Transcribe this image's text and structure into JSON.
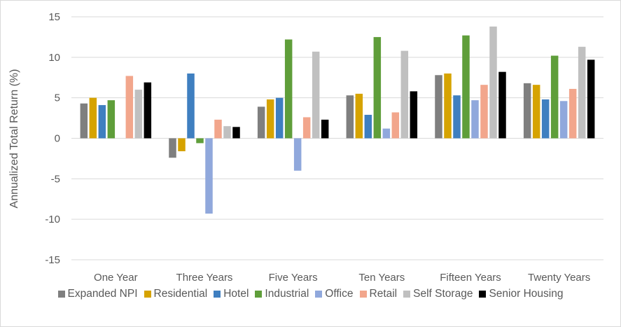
{
  "chart_data": {
    "type": "bar",
    "ylabel": "Annualized Total Return (%)",
    "xlabel": "",
    "ylim": [
      -15,
      15
    ],
    "yticks": [
      15,
      10,
      5,
      0,
      -5,
      -10,
      -15
    ],
    "grid": true,
    "legend_position": "bottom",
    "categories": [
      "One Year",
      "Three Years",
      "Five Years",
      "Ten Years",
      "Fifteen Years",
      "Twenty Years"
    ],
    "series": [
      {
        "name": "Expanded NPI",
        "color": "#7f7f7f",
        "values": [
          4.3,
          -2.4,
          3.9,
          5.3,
          7.8,
          6.8
        ]
      },
      {
        "name": "Residential",
        "color": "#d6a300",
        "values": [
          5.0,
          -1.6,
          4.8,
          5.5,
          8.0,
          6.6
        ]
      },
      {
        "name": "Hotel",
        "color": "#3f7fc0",
        "values": [
          4.1,
          8.0,
          5.0,
          2.9,
          5.3,
          4.8
        ]
      },
      {
        "name": "Industrial",
        "color": "#5f9e3a",
        "values": [
          4.7,
          -0.6,
          12.2,
          12.5,
          12.7,
          10.2
        ]
      },
      {
        "name": "Office",
        "color": "#90a8dc",
        "values": [
          0,
          -9.3,
          -4.0,
          1.2,
          4.7,
          4.6
        ]
      },
      {
        "name": "Retail",
        "color": "#f2a68c",
        "values": [
          7.7,
          2.3,
          2.6,
          3.2,
          6.6,
          6.1
        ]
      },
      {
        "name": "Self Storage",
        "color": "#c0c0c0",
        "values": [
          6.0,
          1.5,
          10.7,
          10.8,
          13.8,
          11.3
        ]
      },
      {
        "name": "Senior Housing",
        "color": "#000000",
        "values": [
          6.9,
          1.4,
          2.3,
          5.8,
          8.2,
          9.7
        ]
      }
    ]
  }
}
